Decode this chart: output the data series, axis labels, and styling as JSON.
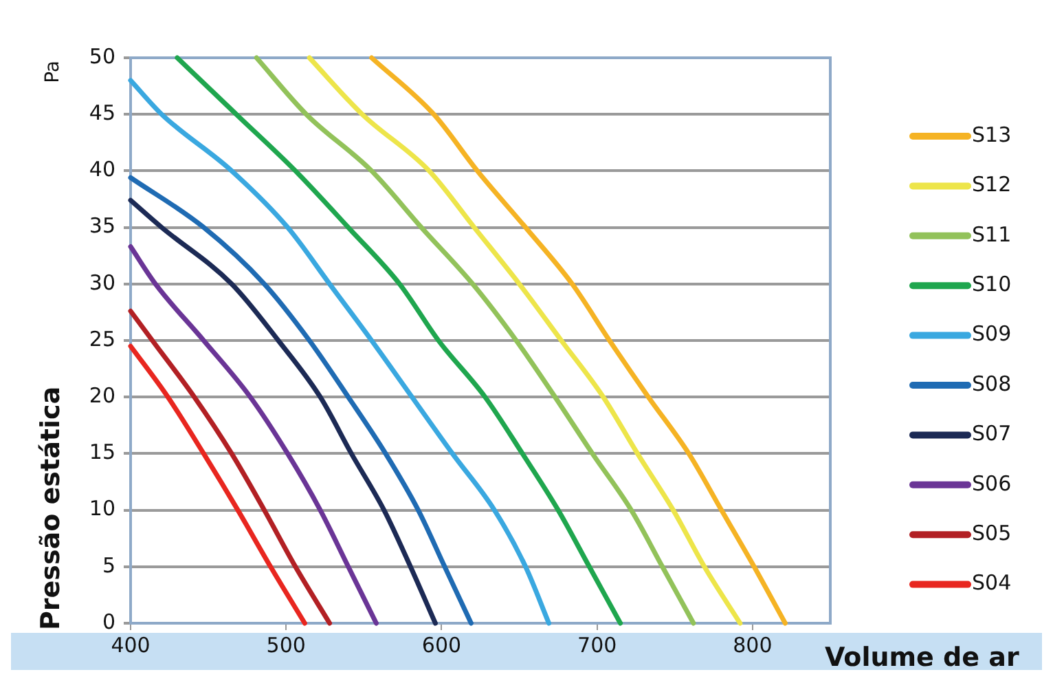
{
  "chart_data": {
    "type": "line",
    "xlabel": "Volume de ar",
    "ylabel": "Pressão estática",
    "annotations": [
      "Pa"
    ],
    "xlim": [
      400,
      850
    ],
    "xticks": [
      400,
      500,
      600,
      700,
      800
    ],
    "ylim": [
      0,
      50
    ],
    "yticks": [
      0,
      5,
      10,
      15,
      20,
      25,
      30,
      35,
      40,
      45,
      50
    ],
    "grid": "y",
    "legend": "right",
    "marker": "none",
    "line_style": "solid",
    "series": [
      {
        "name": "S13",
        "color": "#f5b324",
        "x": [
          555,
          595,
          623,
          654,
          684,
          708,
          733,
          759,
          780,
          801,
          821
        ],
        "values": [
          50,
          45,
          40,
          35,
          30,
          25,
          20,
          15,
          10,
          5,
          0
        ]
      },
      {
        "name": "S12",
        "color": "#ede54a",
        "x": [
          515,
          549,
          592,
          621,
          650,
          677,
          704,
          726,
          749,
          769,
          792
        ],
        "values": [
          50,
          45,
          40,
          35,
          30,
          25,
          20,
          15,
          10,
          5,
          0
        ]
      },
      {
        "name": "S11",
        "color": "#92c25a",
        "x": [
          481,
          513,
          555,
          587,
          620,
          648,
          673,
          697,
          722,
          742,
          762
        ],
        "values": [
          50,
          45,
          40,
          35,
          30,
          25,
          20,
          15,
          10,
          5,
          0
        ]
      },
      {
        "name": "S10",
        "color": "#1fa64e",
        "x": [
          430,
          468,
          506,
          540,
          573,
          598,
          628,
          652,
          675,
          695,
          715
        ],
        "values": [
          50,
          45,
          40,
          35,
          30,
          25,
          20,
          15,
          10,
          5,
          0
        ]
      },
      {
        "name": "S09",
        "color": "#3aa8e0",
        "x": [
          400,
          420,
          465,
          501,
          528,
          555,
          581,
          607,
          634,
          654,
          669
        ],
        "values": [
          48,
          45,
          40,
          35,
          30,
          25,
          20,
          15,
          10,
          5,
          0
        ]
      },
      {
        "name": "S08",
        "color": "#1f6bb3",
        "x": [
          400,
          447,
          486,
          515,
          540,
          564,
          585,
          602,
          619
        ],
        "values": [
          39.4,
          35,
          30,
          25,
          20,
          15,
          10,
          5,
          0
        ]
      },
      {
        "name": "S07",
        "color": "#1c2a55",
        "x": [
          400,
          420,
          465,
          495,
          522,
          542,
          563,
          580,
          596
        ],
        "values": [
          37.4,
          35,
          30,
          25,
          20,
          15,
          10,
          5,
          0
        ]
      },
      {
        "name": "S06",
        "color": "#6a3596",
        "x": [
          400,
          416,
          447,
          477,
          501,
          522,
          540,
          558
        ],
        "values": [
          33.3,
          30,
          25,
          20,
          15,
          10,
          5,
          0
        ]
      },
      {
        "name": "S05",
        "color": "#b22024",
        "x": [
          400,
          414,
          441,
          465,
          486,
          506,
          528
        ],
        "values": [
          27.6,
          25,
          20,
          15,
          10,
          5,
          0
        ]
      },
      {
        "name": "S04",
        "color": "#e8261f",
        "x": [
          400,
          424,
          447,
          469,
          490,
          512
        ],
        "values": [
          24.5,
          20,
          15,
          10,
          5,
          0
        ]
      }
    ]
  }
}
